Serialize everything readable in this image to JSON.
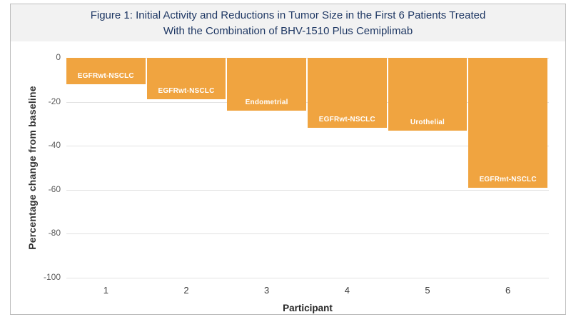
{
  "figure": {
    "title_line1": "Figure 1: Initial Activity and Reductions in Tumor Size in the First 6 Patients Treated",
    "title_line2": "With the Combination of BHV-1510 Plus Cemiplimab"
  },
  "chart_data": {
    "type": "bar",
    "title": "Figure 1: Initial Activity and Reductions in Tumor Size in the First 6 Patients Treated With the Combination of BHV-1510 Plus Cemiplimab",
    "xlabel": "Participant",
    "ylabel": "Percentage change from baseline",
    "categories": [
      "1",
      "2",
      "3",
      "4",
      "5",
      "6"
    ],
    "values": [
      -12,
      -19,
      -24,
      -32,
      -33,
      -59
    ],
    "bar_labels": [
      "EGFRwt-NSCLC",
      "EGFRwt-NSCLC",
      "Endometrial",
      "EGFRwt-NSCLC",
      "Urothelial",
      "EGFRmt-NSCLC"
    ],
    "yticks": [
      0,
      -20,
      -40,
      -60,
      -80,
      -100
    ],
    "ylim": [
      -100,
      0
    ],
    "grid": true,
    "legend": false,
    "bar_color": "#F0A440",
    "bar_label_color": "#FFFFFF",
    "title_color": "#1F3864",
    "title_background": "#F2F2F2"
  }
}
